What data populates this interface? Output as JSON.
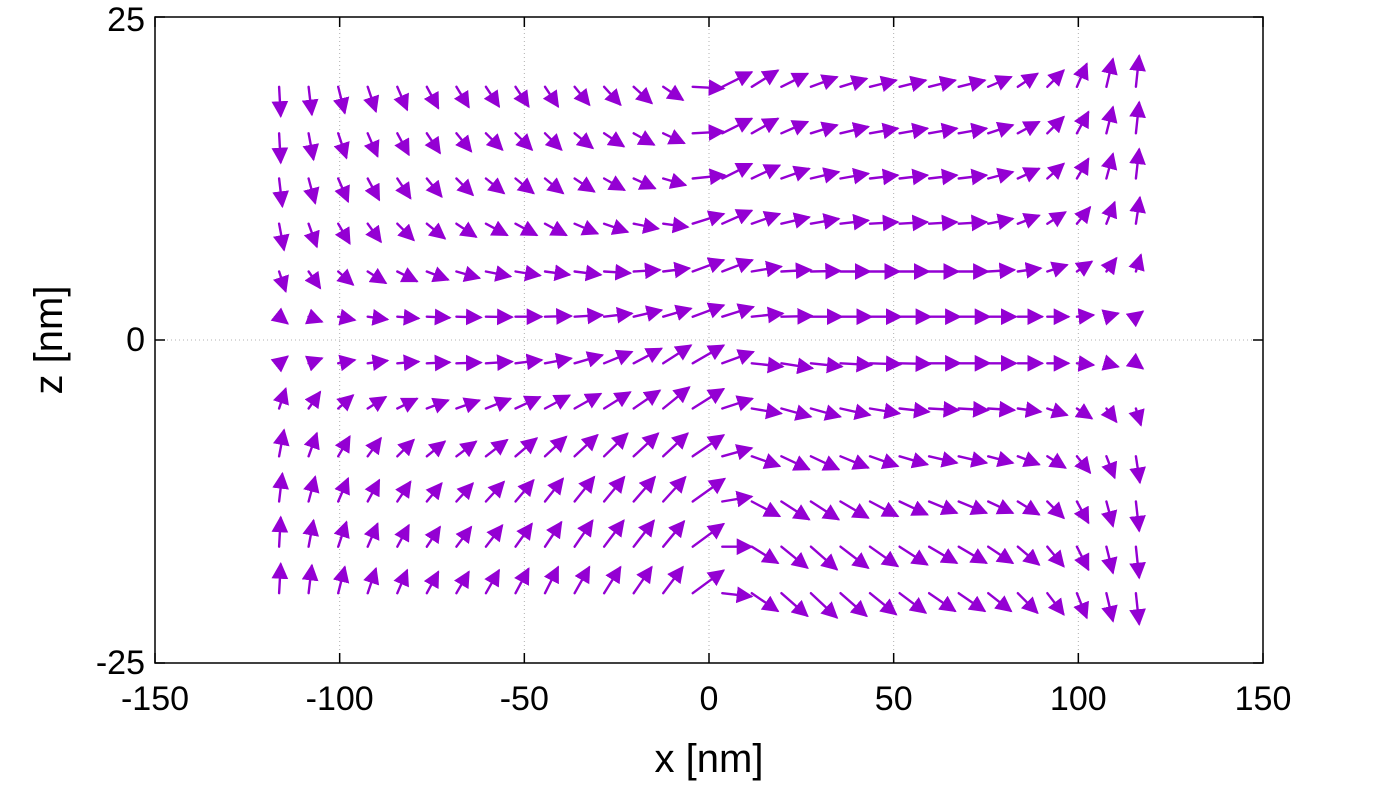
{
  "chart_data": {
    "type": "quiver",
    "xlabel": "x [nm]",
    "ylabel": "z [nm]",
    "xlim": [
      -150,
      150
    ],
    "ylim": [
      -25,
      25
    ],
    "xticks": [
      -150,
      -100,
      -50,
      0,
      50,
      100,
      150
    ],
    "yticks": [
      -25,
      0,
      25
    ],
    "xtick_labels": [
      "-150",
      "-100",
      "-50",
      "0",
      "50",
      "100",
      "150"
    ],
    "ytick_labels": [
      "-25",
      "0",
      "25"
    ],
    "grid": "dotted",
    "arrow_color": "#9400D3",
    "x": [
      -116.4,
      -108.4,
      -100.4,
      -92.4,
      -84.4,
      -76.4,
      -68.4,
      -60.4,
      -52.4,
      -44.4,
      -36.4,
      -28.4,
      -20.4,
      -12.4,
      -4.4,
      3.6,
      11.6,
      19.6,
      27.6,
      35.6,
      43.6,
      51.6,
      59.6,
      67.6,
      75.6,
      83.6,
      91.6,
      99.6,
      107.6,
      115.6
    ],
    "z": [
      19.6,
      16.0,
      12.5,
      9.0,
      5.3,
      1.8,
      -1.8,
      -5.3,
      -9.0,
      -12.5,
      -16.0,
      -19.6
    ],
    "u": [
      [
        0.05,
        0.1,
        0.2,
        0.25,
        0.3,
        0.35,
        0.38,
        0.4,
        0.4,
        0.4,
        0.45,
        0.5,
        0.55,
        0.6,
        0.95,
        0.9,
        0.8,
        0.8,
        0.8,
        0.8,
        0.8,
        0.8,
        0.8,
        0.8,
        0.7,
        0.6,
        0.5,
        0.3,
        0.2,
        0.1
      ],
      [
        0.05,
        0.15,
        0.25,
        0.3,
        0.35,
        0.4,
        0.45,
        0.5,
        0.5,
        0.5,
        0.55,
        0.6,
        0.62,
        0.64,
        0.95,
        0.9,
        0.8,
        0.8,
        0.8,
        0.85,
        0.85,
        0.85,
        0.85,
        0.85,
        0.75,
        0.65,
        0.5,
        0.35,
        0.2,
        0.1
      ],
      [
        0.1,
        0.2,
        0.3,
        0.35,
        0.4,
        0.45,
        0.5,
        0.55,
        0.55,
        0.55,
        0.6,
        0.62,
        0.65,
        0.68,
        0.98,
        0.9,
        0.85,
        0.85,
        0.85,
        0.85,
        0.85,
        0.85,
        0.85,
        0.85,
        0.75,
        0.65,
        0.5,
        0.35,
        0.2,
        0.1
      ],
      [
        0.15,
        0.25,
        0.35,
        0.4,
        0.5,
        0.55,
        0.6,
        0.65,
        0.65,
        0.65,
        0.7,
        0.72,
        0.75,
        0.75,
        0.95,
        0.9,
        0.85,
        0.85,
        0.85,
        0.85,
        0.85,
        0.85,
        0.85,
        0.85,
        0.75,
        0.65,
        0.55,
        0.4,
        0.25,
        0.12
      ],
      [
        0.2,
        0.35,
        0.45,
        0.55,
        0.6,
        0.65,
        0.7,
        0.75,
        0.75,
        0.75,
        0.8,
        0.8,
        0.8,
        0.8,
        0.95,
        0.92,
        0.9,
        0.9,
        0.9,
        0.9,
        0.9,
        0.9,
        0.9,
        0.9,
        0.8,
        0.7,
        0.6,
        0.45,
        0.3,
        0.15
      ],
      [
        0.25,
        0.4,
        0.5,
        0.6,
        0.65,
        0.7,
        0.75,
        0.8,
        0.8,
        0.8,
        0.85,
        0.85,
        0.85,
        0.85,
        0.95,
        0.95,
        0.95,
        0.95,
        0.95,
        0.95,
        0.95,
        0.95,
        0.95,
        0.95,
        0.85,
        0.75,
        0.65,
        0.5,
        0.35,
        0.2
      ],
      [
        0.25,
        0.4,
        0.5,
        0.6,
        0.65,
        0.7,
        0.75,
        0.8,
        0.8,
        0.8,
        0.85,
        0.85,
        0.85,
        0.85,
        0.95,
        0.95,
        0.95,
        0.95,
        0.95,
        0.95,
        0.95,
        0.95,
        0.95,
        0.95,
        0.85,
        0.75,
        0.65,
        0.5,
        0.35,
        0.2
      ],
      [
        0.2,
        0.35,
        0.45,
        0.55,
        0.6,
        0.65,
        0.7,
        0.75,
        0.75,
        0.75,
        0.8,
        0.8,
        0.8,
        0.8,
        0.95,
        0.92,
        0.9,
        0.9,
        0.9,
        0.9,
        0.9,
        0.9,
        0.9,
        0.9,
        0.8,
        0.7,
        0.6,
        0.45,
        0.3,
        0.15
      ],
      [
        0.15,
        0.25,
        0.35,
        0.4,
        0.5,
        0.55,
        0.6,
        0.65,
        0.65,
        0.65,
        0.7,
        0.72,
        0.75,
        0.75,
        0.95,
        0.9,
        0.85,
        0.85,
        0.85,
        0.85,
        0.85,
        0.85,
        0.85,
        0.85,
        0.75,
        0.65,
        0.55,
        0.4,
        0.25,
        0.12
      ],
      [
        0.1,
        0.2,
        0.3,
        0.35,
        0.4,
        0.45,
        0.5,
        0.55,
        0.55,
        0.55,
        0.6,
        0.62,
        0.65,
        0.68,
        0.98,
        0.9,
        0.85,
        0.85,
        0.85,
        0.85,
        0.85,
        0.85,
        0.85,
        0.85,
        0.75,
        0.65,
        0.5,
        0.35,
        0.2,
        0.1
      ],
      [
        0.05,
        0.15,
        0.25,
        0.3,
        0.35,
        0.4,
        0.45,
        0.5,
        0.5,
        0.5,
        0.55,
        0.6,
        0.62,
        0.64,
        0.95,
        0.9,
        0.8,
        0.8,
        0.8,
        0.85,
        0.85,
        0.85,
        0.85,
        0.85,
        0.75,
        0.65,
        0.5,
        0.35,
        0.2,
        0.1
      ],
      [
        0.05,
        0.1,
        0.2,
        0.25,
        0.3,
        0.35,
        0.38,
        0.4,
        0.4,
        0.4,
        0.45,
        0.5,
        0.55,
        0.6,
        0.95,
        0.9,
        0.8,
        0.8,
        0.8,
        0.8,
        0.8,
        0.8,
        0.8,
        0.8,
        0.7,
        0.6,
        0.5,
        0.3,
        0.2,
        0.1
      ]
    ],
    "w": [
      [
        -0.9,
        -0.85,
        -0.8,
        -0.75,
        -0.7,
        -0.65,
        -0.62,
        -0.6,
        -0.6,
        -0.6,
        -0.55,
        -0.55,
        -0.5,
        -0.4,
        -0.05,
        0.45,
        0.5,
        0.4,
        0.3,
        0.25,
        0.2,
        0.2,
        0.2,
        0.2,
        0.3,
        0.4,
        0.5,
        0.7,
        0.85,
        0.95
      ],
      [
        -0.9,
        -0.8,
        -0.75,
        -0.7,
        -0.65,
        -0.6,
        -0.55,
        -0.5,
        -0.5,
        -0.5,
        -0.45,
        -0.4,
        -0.35,
        -0.3,
        0.05,
        0.45,
        0.45,
        0.35,
        0.25,
        0.2,
        0.15,
        0.15,
        0.15,
        0.15,
        0.25,
        0.35,
        0.5,
        0.65,
        0.8,
        0.95
      ],
      [
        -0.85,
        -0.75,
        -0.7,
        -0.65,
        -0.6,
        -0.55,
        -0.5,
        -0.45,
        -0.45,
        -0.45,
        -0.4,
        -0.35,
        -0.3,
        -0.2,
        0.1,
        0.45,
        0.4,
        0.3,
        0.2,
        0.15,
        0.1,
        0.1,
        0.1,
        0.1,
        0.2,
        0.3,
        0.45,
        0.6,
        0.75,
        0.9
      ],
      [
        -0.8,
        -0.7,
        -0.6,
        -0.55,
        -0.5,
        -0.45,
        -0.4,
        -0.35,
        -0.35,
        -0.35,
        -0.3,
        -0.25,
        -0.15,
        -0.1,
        0.3,
        0.4,
        0.3,
        0.2,
        0.15,
        0.1,
        0.05,
        0.05,
        0.05,
        0.05,
        0.15,
        0.25,
        0.35,
        0.5,
        0.65,
        0.8
      ],
      [
        -0.6,
        -0.5,
        -0.4,
        -0.35,
        -0.3,
        -0.25,
        -0.2,
        -0.15,
        -0.12,
        -0.1,
        -0.1,
        -0.05,
        0.05,
        0.1,
        0.35,
        0.35,
        0.15,
        0.05,
        0.02,
        0.0,
        0.0,
        0.0,
        0.0,
        0.0,
        0.05,
        0.1,
        0.2,
        0.3,
        0.4,
        0.5
      ],
      [
        -0.2,
        -0.15,
        -0.1,
        -0.08,
        -0.05,
        -0.03,
        -0.02,
        -0.01,
        0.0,
        0.02,
        0.05,
        0.1,
        0.2,
        0.25,
        0.35,
        0.3,
        0.1,
        0.02,
        0.0,
        0.0,
        0.0,
        0.0,
        0.0,
        0.0,
        0.0,
        0.0,
        0.0,
        0.05,
        0.1,
        0.15
      ],
      [
        0.2,
        0.15,
        0.1,
        0.08,
        0.05,
        0.03,
        0.02,
        0.05,
        0.1,
        0.15,
        0.25,
        0.35,
        0.45,
        0.55,
        0.55,
        0.35,
        -0.1,
        -0.15,
        -0.1,
        -0.05,
        -0.03,
        -0.02,
        0.0,
        0.0,
        0.0,
        0.0,
        0.0,
        -0.05,
        -0.1,
        -0.15
      ],
      [
        0.6,
        0.5,
        0.4,
        0.35,
        0.3,
        0.25,
        0.25,
        0.3,
        0.35,
        0.4,
        0.45,
        0.5,
        0.55,
        0.65,
        0.6,
        0.3,
        -0.15,
        -0.25,
        -0.25,
        -0.2,
        -0.15,
        -0.1,
        -0.05,
        -0.05,
        -0.05,
        -0.1,
        -0.2,
        -0.3,
        -0.4,
        -0.5
      ],
      [
        0.8,
        0.7,
        0.6,
        0.55,
        0.5,
        0.45,
        0.45,
        0.5,
        0.55,
        0.6,
        0.65,
        0.7,
        0.7,
        0.7,
        0.65,
        0.25,
        -0.3,
        -0.4,
        -0.4,
        -0.35,
        -0.3,
        -0.25,
        -0.2,
        -0.2,
        -0.2,
        -0.25,
        -0.35,
        -0.5,
        -0.65,
        -0.8
      ],
      [
        0.85,
        0.75,
        0.7,
        0.65,
        0.6,
        0.55,
        0.55,
        0.6,
        0.65,
        0.7,
        0.75,
        0.75,
        0.75,
        0.75,
        0.7,
        0.15,
        -0.45,
        -0.55,
        -0.55,
        -0.5,
        -0.45,
        -0.4,
        -0.35,
        -0.35,
        -0.35,
        -0.4,
        -0.5,
        -0.65,
        -0.75,
        -0.9
      ],
      [
        0.9,
        0.8,
        0.75,
        0.7,
        0.65,
        0.6,
        0.6,
        0.65,
        0.7,
        0.75,
        0.8,
        0.8,
        0.8,
        0.78,
        0.7,
        0.0,
        -0.5,
        -0.65,
        -0.7,
        -0.65,
        -0.6,
        -0.55,
        -0.5,
        -0.5,
        -0.5,
        -0.55,
        -0.6,
        -0.7,
        -0.8,
        -0.95
      ],
      [
        0.9,
        0.85,
        0.8,
        0.75,
        0.7,
        0.65,
        0.65,
        0.7,
        0.75,
        0.8,
        0.8,
        0.8,
        0.8,
        0.8,
        0.7,
        -0.1,
        -0.55,
        -0.7,
        -0.75,
        -0.7,
        -0.65,
        -0.6,
        -0.55,
        -0.55,
        -0.55,
        -0.6,
        -0.65,
        -0.75,
        -0.85,
        -0.95
      ]
    ]
  }
}
